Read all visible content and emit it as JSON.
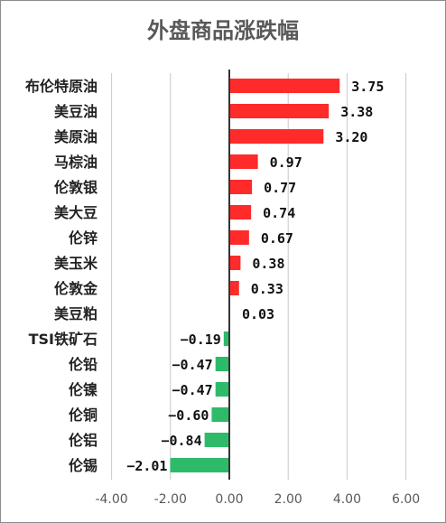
{
  "chart_data": {
    "type": "bar",
    "orientation": "horizontal",
    "title": "外盘商品涨跌幅",
    "categories": [
      "布伦特原油",
      "美豆油",
      "美原油",
      "马棕油",
      "伦敦银",
      "美大豆",
      "伦锌",
      "美玉米",
      "伦敦金",
      "美豆粕",
      "TSI铁矿石",
      "伦铅",
      "伦镍",
      "伦铜",
      "伦铝",
      "伦锡"
    ],
    "values": [
      3.75,
      3.38,
      3.2,
      0.97,
      0.77,
      0.74,
      0.67,
      0.38,
      0.33,
      0.03,
      -0.19,
      -0.47,
      -0.47,
      -0.6,
      -0.84,
      -2.01
    ],
    "value_labels": [
      "3.75",
      "3.38",
      "3.20",
      "0.97",
      "0.77",
      "0.74",
      "0.67",
      "0.38",
      "0.33",
      "0.03",
      "−0.19",
      "−0.47",
      "−0.47",
      "−0.60",
      "−0.84",
      "−2.01"
    ],
    "xlim": [
      -4,
      6
    ],
    "xticks": [
      "-4.00",
      "-2.00",
      "0.00",
      "2.00",
      "4.00",
      "6.00"
    ],
    "grid": true,
    "colors": {
      "positive": "#ff2a2a",
      "negative": "#2dbb6a",
      "grid": "#c8c8c8",
      "axis": "#333333"
    }
  }
}
